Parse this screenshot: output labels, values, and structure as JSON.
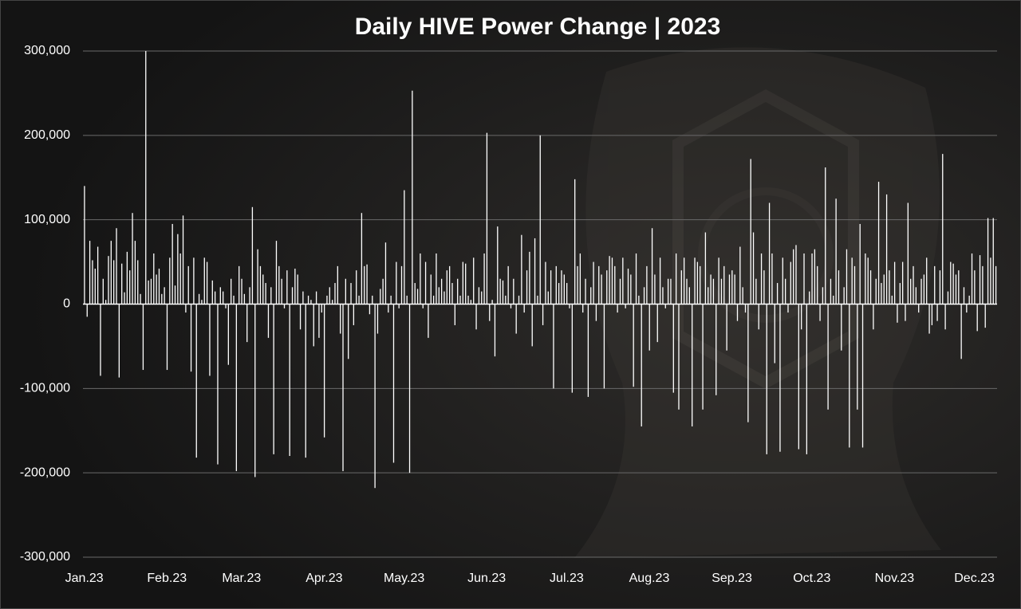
{
  "chart_data": {
    "type": "bar",
    "title": "Daily HIVE Power Change | 2023",
    "color": "#ffffff",
    "grid": true,
    "ylim": [
      -300000,
      300000
    ],
    "yticks": [
      {
        "value": -300000,
        "label": "-300,000"
      },
      {
        "value": -200000,
        "label": "-200,000"
      },
      {
        "value": -100000,
        "label": "-100,000"
      },
      0,
      {
        "value": 100000,
        "label": "100,000"
      },
      {
        "value": 200000,
        "label": "200,000"
      },
      {
        "value": 300000,
        "label": "300,000"
      }
    ],
    "categories": [
      "Jan.23",
      null,
      null,
      null,
      null,
      null,
      null,
      null,
      null,
      null,
      null,
      null,
      null,
      null,
      null,
      null,
      null,
      null,
      null,
      null,
      null,
      null,
      null,
      null,
      null,
      null,
      null,
      null,
      null,
      null,
      null,
      "Feb.23",
      null,
      null,
      null,
      null,
      null,
      null,
      null,
      null,
      null,
      null,
      null,
      null,
      null,
      null,
      null,
      null,
      null,
      null,
      null,
      null,
      null,
      null,
      null,
      null,
      null,
      null,
      null,
      "Mar.23",
      null,
      null,
      null,
      null,
      null,
      null,
      null,
      null,
      null,
      null,
      null,
      null,
      null,
      null,
      null,
      null,
      null,
      null,
      null,
      null,
      null,
      null,
      null,
      null,
      null,
      null,
      null,
      null,
      null,
      null,
      "Apr.23",
      null,
      null,
      null,
      null,
      null,
      null,
      null,
      null,
      null,
      null,
      null,
      null,
      null,
      null,
      null,
      null,
      null,
      null,
      null,
      null,
      null,
      null,
      null,
      null,
      null,
      null,
      null,
      null,
      null,
      "May.23",
      null,
      null,
      null,
      null,
      null,
      null,
      null,
      null,
      null,
      null,
      null,
      null,
      null,
      null,
      null,
      null,
      null,
      null,
      null,
      null,
      null,
      null,
      null,
      null,
      null,
      null,
      null,
      null,
      null,
      null,
      "Jun.23",
      null,
      null,
      null,
      null,
      null,
      null,
      null,
      null,
      null,
      null,
      null,
      null,
      null,
      null,
      null,
      null,
      null,
      null,
      null,
      null,
      null,
      null,
      null,
      null,
      null,
      null,
      null,
      null,
      null,
      "Jul.23",
      null,
      null,
      null,
      null,
      null,
      null,
      null,
      null,
      null,
      null,
      null,
      null,
      null,
      null,
      null,
      null,
      null,
      null,
      null,
      null,
      null,
      null,
      null,
      null,
      null,
      null,
      null,
      null,
      null,
      null,
      "Aug.23",
      null,
      null,
      null,
      null,
      null,
      null,
      null,
      null,
      null,
      null,
      null,
      null,
      null,
      null,
      null,
      null,
      null,
      null,
      null,
      null,
      null,
      null,
      null,
      null,
      null,
      null,
      null,
      null,
      null,
      null,
      "Sep.23",
      null,
      null,
      null,
      null,
      null,
      null,
      null,
      null,
      null,
      null,
      null,
      null,
      null,
      null,
      null,
      null,
      null,
      null,
      null,
      null,
      null,
      null,
      null,
      null,
      null,
      null,
      null,
      null,
      null,
      "Oct.23",
      null,
      null,
      null,
      null,
      null,
      null,
      null,
      null,
      null,
      null,
      null,
      null,
      null,
      null,
      null,
      null,
      null,
      null,
      null,
      null,
      null,
      null,
      null,
      null,
      null,
      null,
      null,
      null,
      null,
      null,
      "Nov.23",
      null,
      null,
      null,
      null,
      null,
      null,
      null,
      null,
      null,
      null,
      null,
      null,
      null,
      null,
      null,
      null,
      null,
      null,
      null,
      null,
      null,
      null,
      null,
      null,
      null,
      null,
      null,
      null,
      null,
      "Dec.23",
      null,
      null,
      null,
      null,
      null,
      null,
      null,
      null
    ],
    "values": [
      140000,
      -15000,
      75000,
      52000,
      42000,
      68000,
      -85000,
      30000,
      5000,
      57000,
      75000,
      52000,
      90000,
      -87000,
      48000,
      14000,
      62000,
      40000,
      108000,
      75000,
      52000,
      12000,
      -78000,
      300000,
      28000,
      30000,
      60000,
      35000,
      42000,
      12000,
      20000,
      -78000,
      55000,
      95000,
      22000,
      83000,
      60000,
      105000,
      -10000,
      45000,
      -80000,
      55000,
      -182000,
      12000,
      5000,
      55000,
      50000,
      -85000,
      28000,
      15000,
      -190000,
      20000,
      15000,
      -5000,
      -72000,
      30000,
      10000,
      -198000,
      45000,
      30000,
      12000,
      -45000,
      20000,
      115000,
      -205000,
      65000,
      45000,
      35000,
      25000,
      -40000,
      20000,
      -178000,
      75000,
      45000,
      30000,
      -5000,
      40000,
      -180000,
      20000,
      42000,
      35000,
      -30000,
      15000,
      -182000,
      10000,
      5000,
      -50000,
      15000,
      -40000,
      -10000,
      -158000,
      10000,
      20000,
      5000,
      25000,
      45000,
      -35000,
      -198000,
      30000,
      -65000,
      25000,
      -25000,
      40000,
      10000,
      108000,
      45000,
      47000,
      -12000,
      10000,
      -218000,
      -35000,
      18000,
      30000,
      73000,
      -10000,
      10000,
      -188000,
      50000,
      -5000,
      45000,
      135000,
      10000,
      -200000,
      253000,
      25000,
      18000,
      60000,
      -5000,
      50000,
      -40000,
      35000,
      10000,
      60000,
      20000,
      30000,
      15000,
      40000,
      45000,
      25000,
      -25000,
      30000,
      10000,
      50000,
      48000,
      10000,
      5000,
      55000,
      -30000,
      20000,
      15000,
      60000,
      203000,
      -20000,
      5000,
      -62000,
      92000,
      30000,
      28000,
      10000,
      45000,
      -5000,
      30000,
      -35000,
      10000,
      82000,
      -10000,
      40000,
      62000,
      -50000,
      78000,
      10000,
      200000,
      -25000,
      50000,
      15000,
      40000,
      -100000,
      45000,
      25000,
      40000,
      35000,
      25000,
      -5000,
      -105000,
      148000,
      45000,
      60000,
      -10000,
      30000,
      -110000,
      20000,
      50000,
      -20000,
      45000,
      35000,
      -100000,
      40000,
      57000,
      55000,
      45000,
      -10000,
      30000,
      55000,
      -5000,
      42000,
      35000,
      -98000,
      60000,
      10000,
      -145000,
      20000,
      45000,
      -55000,
      90000,
      35000,
      -45000,
      55000,
      20000,
      -5000,
      30000,
      30000,
      -105000,
      60000,
      -125000,
      40000,
      55000,
      30000,
      20000,
      -145000,
      55000,
      50000,
      45000,
      -125000,
      85000,
      20000,
      35000,
      30000,
      -108000,
      55000,
      30000,
      45000,
      -55000,
      35000,
      40000,
      35000,
      -20000,
      68000,
      20000,
      -10000,
      -140000,
      172000,
      85000,
      30000,
      -30000,
      60000,
      40000,
      -178000,
      120000,
      60000,
      -70000,
      25000,
      -175000,
      55000,
      30000,
      -10000,
      50000,
      65000,
      70000,
      -172000,
      -30000,
      60000,
      -178000,
      15000,
      60000,
      65000,
      45000,
      -20000,
      20000,
      162000,
      -125000,
      30000,
      10000,
      125000,
      40000,
      -55000,
      20000,
      65000,
      -170000,
      55000,
      45000,
      -125000,
      95000,
      -170000,
      60000,
      55000,
      40000,
      -30000,
      30000,
      145000,
      25000,
      35000,
      130000,
      40000,
      10000,
      50000,
      -22000,
      25000,
      50000,
      -20000,
      120000,
      30000,
      45000,
      20000,
      -10000,
      30000,
      35000,
      55000,
      -35000,
      -25000,
      45000,
      -20000,
      40000,
      178000,
      -30000,
      15000,
      50000,
      48000,
      35000,
      40000,
      -65000,
      20000,
      -10000,
      10000,
      60000,
      40000,
      -32000,
      58000,
      45000,
      -28000,
      102000,
      55000,
      102000,
      45000
    ]
  }
}
